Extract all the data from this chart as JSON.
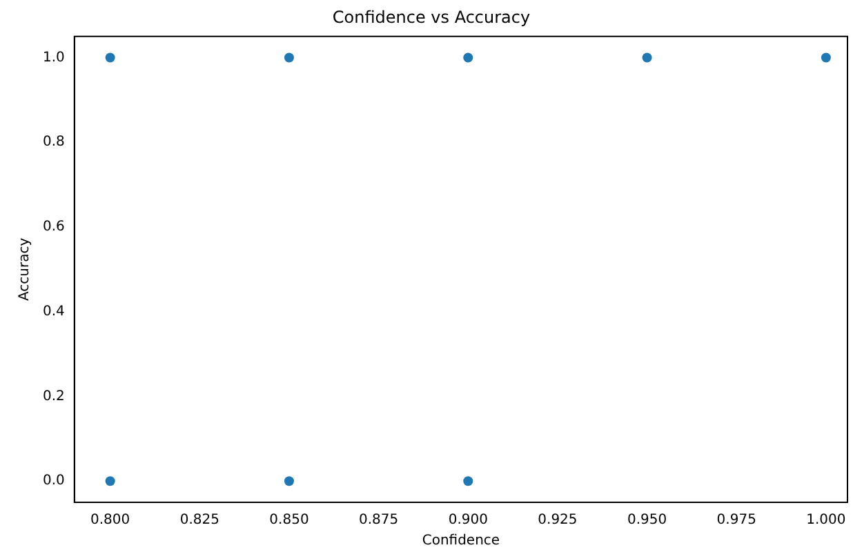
{
  "chart_data": {
    "type": "scatter",
    "title": "Confidence vs Accuracy",
    "xlabel": "Confidence",
    "ylabel": "Accuracy",
    "x": [
      0.8,
      0.85,
      0.9,
      0.95,
      1.0,
      0.8,
      0.85,
      0.9
    ],
    "values": [
      1,
      1,
      1,
      1,
      1,
      0,
      0,
      0
    ],
    "color": "#1f77b4",
    "marker": "circle",
    "xlim": [
      0.79,
      1.006
    ],
    "xticks": [
      {
        "value": 0.8,
        "label": "0.800"
      },
      {
        "value": 0.825,
        "label": "0.825"
      },
      {
        "value": 0.85,
        "label": "0.850"
      },
      {
        "value": 0.875,
        "label": "0.875"
      },
      {
        "value": 0.9,
        "label": "0.900"
      },
      {
        "value": 0.925,
        "label": "0.925"
      },
      {
        "value": 0.95,
        "label": "0.950"
      },
      {
        "value": 0.975,
        "label": "0.975"
      },
      {
        "value": 1.0,
        "label": "1.000"
      }
    ],
    "ylim": [
      -0.05,
      1.05
    ],
    "yticks": [
      {
        "value": 0,
        "label": "0.0"
      },
      {
        "value": 0.2,
        "label": "0.2"
      },
      {
        "value": 0.4,
        "label": "0.4"
      },
      {
        "value": 0.6,
        "label": "0.6"
      },
      {
        "value": 0.8,
        "label": "0.8"
      },
      {
        "value": 1.0,
        "label": "1.0"
      }
    ]
  }
}
